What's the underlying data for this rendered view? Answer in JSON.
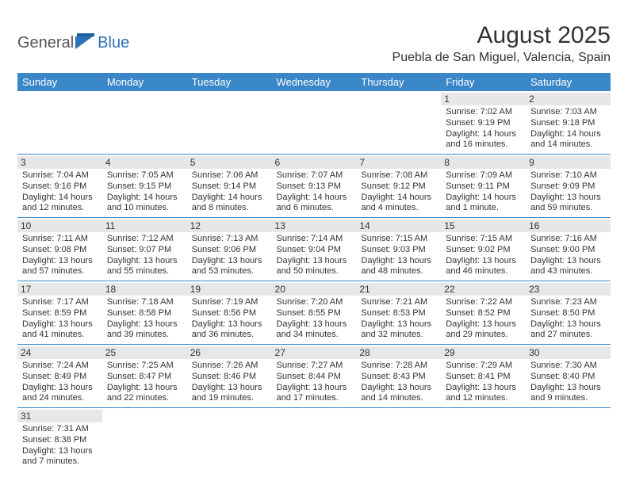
{
  "logo": {
    "text_general": "General",
    "text_blue": "Blue",
    "icon_color": "#2a72b5"
  },
  "header": {
    "month_title": "August 2025",
    "location": "Puebla de San Miguel, Valencia, Spain"
  },
  "style": {
    "header_bg": "#3a87c8",
    "header_fg": "#ffffff",
    "daynum_bg": "#e7e7e7",
    "rule_color": "#3a87c8",
    "text_color": "#333333",
    "body_bg": "#ffffff"
  },
  "calendar": {
    "weekdays": [
      "Sunday",
      "Monday",
      "Tuesday",
      "Wednesday",
      "Thursday",
      "Friday",
      "Saturday"
    ],
    "days": {
      "1": {
        "sunrise": "7:02 AM",
        "sunset": "9:19 PM",
        "daylight": "14 hours and 16 minutes."
      },
      "2": {
        "sunrise": "7:03 AM",
        "sunset": "9:18 PM",
        "daylight": "14 hours and 14 minutes."
      },
      "3": {
        "sunrise": "7:04 AM",
        "sunset": "9:16 PM",
        "daylight": "14 hours and 12 minutes."
      },
      "4": {
        "sunrise": "7:05 AM",
        "sunset": "9:15 PM",
        "daylight": "14 hours and 10 minutes."
      },
      "5": {
        "sunrise": "7:06 AM",
        "sunset": "9:14 PM",
        "daylight": "14 hours and 8 minutes."
      },
      "6": {
        "sunrise": "7:07 AM",
        "sunset": "9:13 PM",
        "daylight": "14 hours and 6 minutes."
      },
      "7": {
        "sunrise": "7:08 AM",
        "sunset": "9:12 PM",
        "daylight": "14 hours and 4 minutes."
      },
      "8": {
        "sunrise": "7:09 AM",
        "sunset": "9:11 PM",
        "daylight": "14 hours and 1 minute."
      },
      "9": {
        "sunrise": "7:10 AM",
        "sunset": "9:09 PM",
        "daylight": "13 hours and 59 minutes."
      },
      "10": {
        "sunrise": "7:11 AM",
        "sunset": "9:08 PM",
        "daylight": "13 hours and 57 minutes."
      },
      "11": {
        "sunrise": "7:12 AM",
        "sunset": "9:07 PM",
        "daylight": "13 hours and 55 minutes."
      },
      "12": {
        "sunrise": "7:13 AM",
        "sunset": "9:06 PM",
        "daylight": "13 hours and 53 minutes."
      },
      "13": {
        "sunrise": "7:14 AM",
        "sunset": "9:04 PM",
        "daylight": "13 hours and 50 minutes."
      },
      "14": {
        "sunrise": "7:15 AM",
        "sunset": "9:03 PM",
        "daylight": "13 hours and 48 minutes."
      },
      "15": {
        "sunrise": "7:15 AM",
        "sunset": "9:02 PM",
        "daylight": "13 hours and 46 minutes."
      },
      "16": {
        "sunrise": "7:16 AM",
        "sunset": "9:00 PM",
        "daylight": "13 hours and 43 minutes."
      },
      "17": {
        "sunrise": "7:17 AM",
        "sunset": "8:59 PM",
        "daylight": "13 hours and 41 minutes."
      },
      "18": {
        "sunrise": "7:18 AM",
        "sunset": "8:58 PM",
        "daylight": "13 hours and 39 minutes."
      },
      "19": {
        "sunrise": "7:19 AM",
        "sunset": "8:56 PM",
        "daylight": "13 hours and 36 minutes."
      },
      "20": {
        "sunrise": "7:20 AM",
        "sunset": "8:55 PM",
        "daylight": "13 hours and 34 minutes."
      },
      "21": {
        "sunrise": "7:21 AM",
        "sunset": "8:53 PM",
        "daylight": "13 hours and 32 minutes."
      },
      "22": {
        "sunrise": "7:22 AM",
        "sunset": "8:52 PM",
        "daylight": "13 hours and 29 minutes."
      },
      "23": {
        "sunrise": "7:23 AM",
        "sunset": "8:50 PM",
        "daylight": "13 hours and 27 minutes."
      },
      "24": {
        "sunrise": "7:24 AM",
        "sunset": "8:49 PM",
        "daylight": "13 hours and 24 minutes."
      },
      "25": {
        "sunrise": "7:25 AM",
        "sunset": "8:47 PM",
        "daylight": "13 hours and 22 minutes."
      },
      "26": {
        "sunrise": "7:26 AM",
        "sunset": "8:46 PM",
        "daylight": "13 hours and 19 minutes."
      },
      "27": {
        "sunrise": "7:27 AM",
        "sunset": "8:44 PM",
        "daylight": "13 hours and 17 minutes."
      },
      "28": {
        "sunrise": "7:28 AM",
        "sunset": "8:43 PM",
        "daylight": "13 hours and 14 minutes."
      },
      "29": {
        "sunrise": "7:29 AM",
        "sunset": "8:41 PM",
        "daylight": "13 hours and 12 minutes."
      },
      "30": {
        "sunrise": "7:30 AM",
        "sunset": "8:40 PM",
        "daylight": "13 hours and 9 minutes."
      },
      "31": {
        "sunrise": "7:31 AM",
        "sunset": "8:38 PM",
        "daylight": "13 hours and 7 minutes."
      }
    },
    "layout": [
      [
        null,
        null,
        null,
        null,
        null,
        "1",
        "2"
      ],
      [
        "3",
        "4",
        "5",
        "6",
        "7",
        "8",
        "9"
      ],
      [
        "10",
        "11",
        "12",
        "13",
        "14",
        "15",
        "16"
      ],
      [
        "17",
        "18",
        "19",
        "20",
        "21",
        "22",
        "23"
      ],
      [
        "24",
        "25",
        "26",
        "27",
        "28",
        "29",
        "30"
      ],
      [
        "31",
        null,
        null,
        null,
        null,
        null,
        null
      ]
    ],
    "labels": {
      "sunrise_prefix": "Sunrise: ",
      "sunset_prefix": "Sunset: ",
      "daylight_prefix": "Daylight: "
    }
  }
}
